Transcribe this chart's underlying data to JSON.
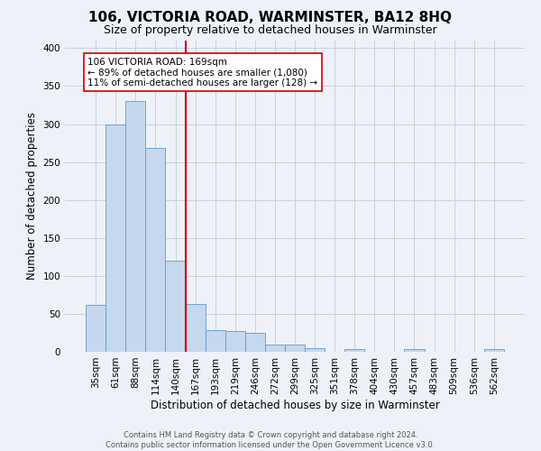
{
  "title": "106, VICTORIA ROAD, WARMINSTER, BA12 8HQ",
  "subtitle": "Size of property relative to detached houses in Warminster",
  "xlabel": "Distribution of detached houses by size in Warminster",
  "ylabel": "Number of detached properties",
  "bar_labels": [
    "35sqm",
    "61sqm",
    "88sqm",
    "114sqm",
    "140sqm",
    "167sqm",
    "193sqm",
    "219sqm",
    "246sqm",
    "272sqm",
    "299sqm",
    "325sqm",
    "351sqm",
    "378sqm",
    "404sqm",
    "430sqm",
    "457sqm",
    "483sqm",
    "509sqm",
    "536sqm",
    "562sqm"
  ],
  "bar_values": [
    62,
    300,
    330,
    268,
    120,
    63,
    29,
    27,
    25,
    10,
    10,
    5,
    0,
    3,
    0,
    0,
    3,
    0,
    0,
    0,
    3
  ],
  "bar_color": "#c5d8ed",
  "bar_edge_color": "#5b9bd5",
  "vline_x_index": 5,
  "vline_color": "#cc0000",
  "annotation_line1": "106 VICTORIA ROAD: 169sqm",
  "annotation_line2": "← 89% of detached houses are smaller (1,080)",
  "annotation_line3": "11% of semi-detached houses are larger (128) →",
  "annotation_box_color": "white",
  "annotation_box_edge_color": "#cc0000",
  "annotation_fontsize": 7.5,
  "ylim": [
    0,
    410
  ],
  "yticks": [
    0,
    50,
    100,
    150,
    200,
    250,
    300,
    350,
    400
  ],
  "grid_color": "#c8d0dc",
  "background_color": "#eef2f8",
  "footer_text": "Contains HM Land Registry data © Crown copyright and database right 2024.\nContains public sector information licensed under the Open Government Licence v3.0.",
  "title_fontsize": 11,
  "subtitle_fontsize": 9,
  "xlabel_fontsize": 8.5,
  "ylabel_fontsize": 8.5,
  "tick_fontsize": 7.5
}
